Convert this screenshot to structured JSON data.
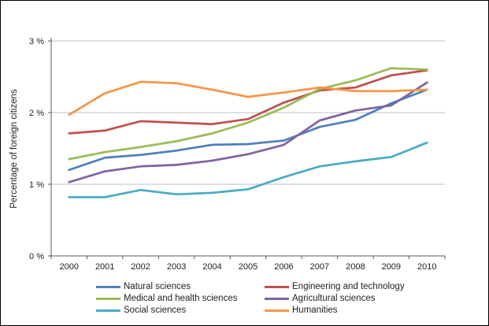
{
  "chart_data": {
    "type": "line",
    "ylabel": "Percentage of foreign citizens",
    "xlabel": "",
    "x": [
      2000,
      2001,
      2002,
      2003,
      2004,
      2005,
      2006,
      2007,
      2008,
      2009,
      2010
    ],
    "series": [
      {
        "name": "Natural sciences",
        "color": "#4F81BD",
        "values": [
          1.2,
          1.37,
          1.41,
          1.47,
          1.55,
          1.56,
          1.61,
          1.8,
          1.9,
          2.13,
          2.32
        ]
      },
      {
        "name": "Engineering and technology",
        "color": "#C0504D",
        "values": [
          1.71,
          1.75,
          1.88,
          1.86,
          1.84,
          1.91,
          2.14,
          2.31,
          2.35,
          2.52,
          2.59
        ]
      },
      {
        "name": "Medical and health sciences",
        "color": "#9BBB59",
        "values": [
          1.35,
          1.45,
          1.52,
          1.6,
          1.71,
          1.86,
          2.07,
          2.33,
          2.45,
          2.62,
          2.6
        ]
      },
      {
        "name": "Agricultural sciences",
        "color": "#8064A2",
        "values": [
          1.03,
          1.18,
          1.25,
          1.27,
          1.33,
          1.42,
          1.55,
          1.89,
          2.03,
          2.1,
          2.42
        ]
      },
      {
        "name": "Social sciences",
        "color": "#4BACC6",
        "values": [
          0.82,
          0.82,
          0.92,
          0.86,
          0.88,
          0.93,
          1.1,
          1.25,
          1.32,
          1.38,
          1.58
        ]
      },
      {
        "name": "Humanities",
        "color": "#F79646",
        "values": [
          1.97,
          2.27,
          2.43,
          2.41,
          2.32,
          2.22,
          2.28,
          2.35,
          2.3,
          2.3,
          2.32
        ]
      }
    ],
    "ylim": [
      0,
      3
    ],
    "yticks": [
      0,
      1,
      2,
      3
    ],
    "ytick_labels": [
      "0 %",
      "1 %",
      "2 %",
      "3 %"
    ],
    "grid": true,
    "grid_color": "#BFBFBF",
    "axis_color": "#595959",
    "text_color": "#1f1f1f",
    "legend_position": "bottom"
  }
}
